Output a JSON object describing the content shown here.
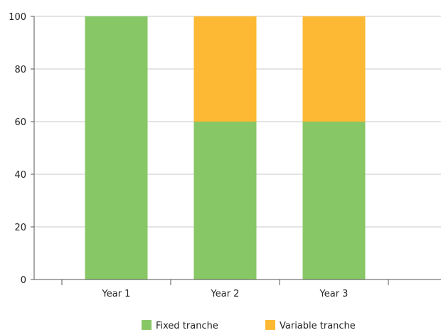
{
  "chart_data": {
    "type": "bar",
    "stacked": true,
    "categories": [
      "Year 1",
      "Year 2",
      "Year 3"
    ],
    "series": [
      {
        "name": "Fixed tranche",
        "values": [
          100,
          60,
          60
        ],
        "color": "#88c765"
      },
      {
        "name": "Variable tranche",
        "values": [
          0,
          40,
          40
        ],
        "color": "#fdb933"
      }
    ],
    "ylim": [
      0,
      100
    ],
    "yticks": [
      0,
      20,
      40,
      60,
      80,
      100
    ],
    "grid": true,
    "legend_position": "bottom-center"
  }
}
